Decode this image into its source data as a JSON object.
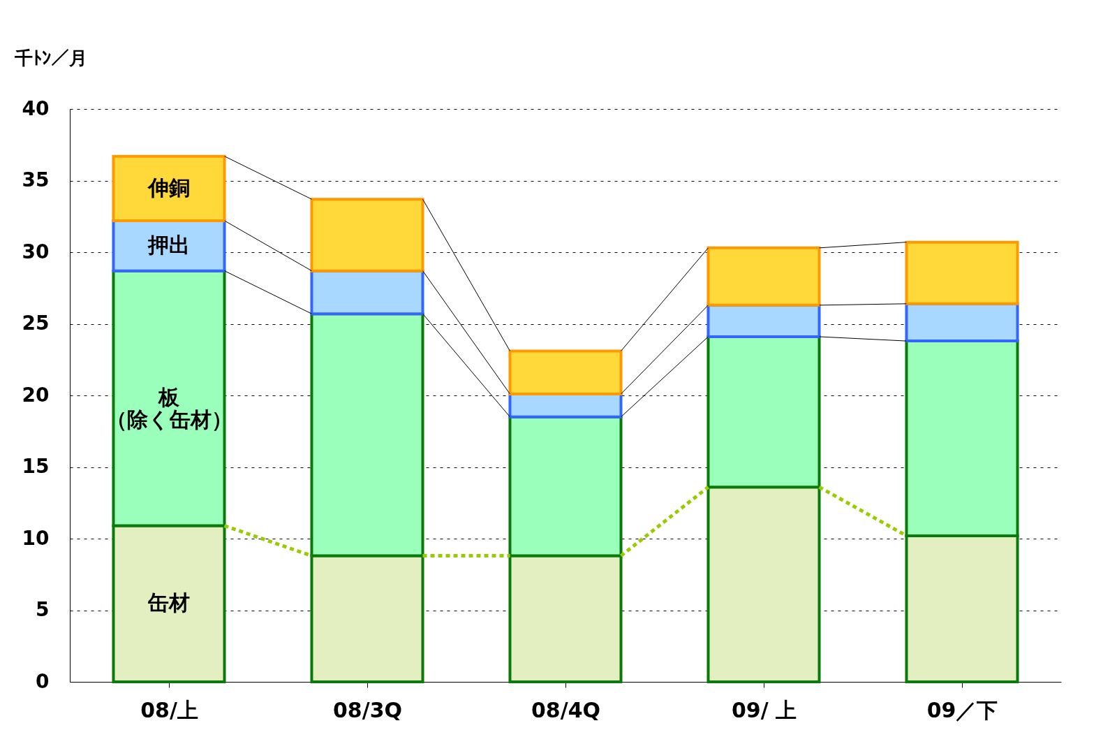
{
  "chart_data": {
    "type": "bar",
    "stacked": true,
    "ylabel": "千ﾄﾝ／月",
    "categories": [
      "08/上",
      "08/3Q",
      "08/4Q",
      "09/ 上",
      "09／下"
    ],
    "series": [
      {
        "name": "缶材",
        "color": "#e3efc0",
        "values": [
          10.9,
          8.8,
          8.8,
          13.6,
          10.2
        ]
      },
      {
        "name": "板（除く缶材）",
        "color": "#99ffbb",
        "values": [
          17.8,
          16.9,
          9.7,
          10.5,
          13.6
        ]
      },
      {
        "name": "押出",
        "color": "#a8d8ff",
        "values": [
          3.5,
          3.0,
          1.6,
          2.2,
          2.6
        ]
      },
      {
        "name": "伸銅",
        "color": "#ffd83a",
        "values": [
          4.5,
          5.0,
          3.0,
          4.0,
          4.3
        ]
      }
    ],
    "ylim": [
      0,
      40
    ],
    "yticks": [
      0,
      5,
      10,
      15,
      20,
      25,
      30,
      35,
      40
    ],
    "grid": "y"
  }
}
